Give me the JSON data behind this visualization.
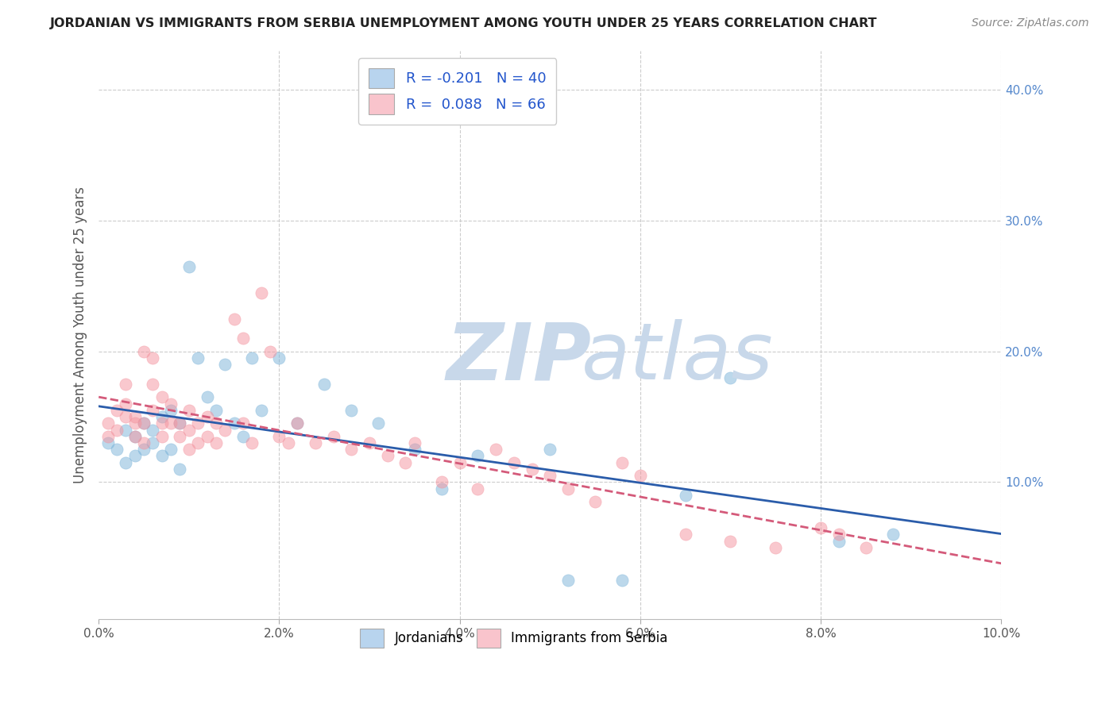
{
  "title": "JORDANIAN VS IMMIGRANTS FROM SERBIA UNEMPLOYMENT AMONG YOUTH UNDER 25 YEARS CORRELATION CHART",
  "source": "Source: ZipAtlas.com",
  "ylabel": "Unemployment Among Youth under 25 years",
  "xlim": [
    0.0,
    0.1
  ],
  "ylim": [
    -0.005,
    0.43
  ],
  "xticks": [
    0.0,
    0.02,
    0.04,
    0.06,
    0.08,
    0.1
  ],
  "xticklabels": [
    "0.0%",
    "2.0%",
    "4.0%",
    "6.0%",
    "8.0%",
    "10.0%"
  ],
  "yticks_right": [
    0.1,
    0.2,
    0.3,
    0.4
  ],
  "yticklabels_right": [
    "10.0%",
    "20.0%",
    "30.0%",
    "40.0%"
  ],
  "blue_color": "#7ab3d9",
  "pink_color": "#f4939e",
  "blue_line_color": "#2a5caa",
  "pink_line_color": "#d45a7a",
  "watermark_zip_color": "#c8d8ea",
  "watermark_atlas_color": "#c8d8ea",
  "background_color": "#ffffff",
  "grid_color": "#cccccc",
  "blue_x": [
    0.001,
    0.002,
    0.003,
    0.003,
    0.004,
    0.004,
    0.005,
    0.005,
    0.006,
    0.006,
    0.007,
    0.007,
    0.008,
    0.008,
    0.009,
    0.009,
    0.01,
    0.011,
    0.012,
    0.013,
    0.014,
    0.015,
    0.016,
    0.017,
    0.018,
    0.02,
    0.022,
    0.025,
    0.028,
    0.031,
    0.035,
    0.038,
    0.042,
    0.05,
    0.052,
    0.058,
    0.065,
    0.07,
    0.082,
    0.088
  ],
  "blue_y": [
    0.13,
    0.125,
    0.14,
    0.115,
    0.135,
    0.12,
    0.145,
    0.125,
    0.14,
    0.13,
    0.15,
    0.12,
    0.155,
    0.125,
    0.145,
    0.11,
    0.265,
    0.195,
    0.165,
    0.155,
    0.19,
    0.145,
    0.135,
    0.195,
    0.155,
    0.195,
    0.145,
    0.175,
    0.155,
    0.145,
    0.125,
    0.095,
    0.12,
    0.125,
    0.025,
    0.025,
    0.09,
    0.18,
    0.055,
    0.06
  ],
  "pink_x": [
    0.001,
    0.001,
    0.002,
    0.002,
    0.003,
    0.003,
    0.003,
    0.004,
    0.004,
    0.004,
    0.005,
    0.005,
    0.005,
    0.006,
    0.006,
    0.006,
    0.007,
    0.007,
    0.007,
    0.008,
    0.008,
    0.009,
    0.009,
    0.01,
    0.01,
    0.01,
    0.011,
    0.011,
    0.012,
    0.012,
    0.013,
    0.013,
    0.014,
    0.015,
    0.016,
    0.016,
    0.017,
    0.018,
    0.019,
    0.02,
    0.021,
    0.022,
    0.024,
    0.026,
    0.028,
    0.03,
    0.032,
    0.034,
    0.035,
    0.038,
    0.04,
    0.042,
    0.044,
    0.046,
    0.048,
    0.05,
    0.052,
    0.055,
    0.058,
    0.06,
    0.065,
    0.07,
    0.075,
    0.08,
    0.082,
    0.085
  ],
  "pink_y": [
    0.145,
    0.135,
    0.155,
    0.14,
    0.175,
    0.16,
    0.15,
    0.145,
    0.135,
    0.15,
    0.2,
    0.145,
    0.13,
    0.195,
    0.175,
    0.155,
    0.165,
    0.145,
    0.135,
    0.16,
    0.145,
    0.145,
    0.135,
    0.155,
    0.14,
    0.125,
    0.145,
    0.13,
    0.15,
    0.135,
    0.145,
    0.13,
    0.14,
    0.225,
    0.21,
    0.145,
    0.13,
    0.245,
    0.2,
    0.135,
    0.13,
    0.145,
    0.13,
    0.135,
    0.125,
    0.13,
    0.12,
    0.115,
    0.13,
    0.1,
    0.115,
    0.095,
    0.125,
    0.115,
    0.11,
    0.105,
    0.095,
    0.085,
    0.115,
    0.105,
    0.06,
    0.055,
    0.05,
    0.065,
    0.06,
    0.05
  ]
}
